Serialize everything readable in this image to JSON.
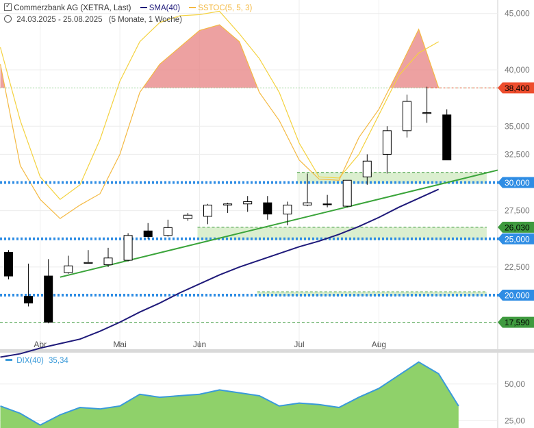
{
  "header": {
    "instrument": "Commerzbank AG (XETRA, Last)",
    "period": "24.03.2025 - 25.08.2025",
    "period_note": "(5 Monate, 1 Woche)",
    "legend": [
      {
        "label": "SMA(40)",
        "color": "#1f1a7a"
      },
      {
        "label": "SSTOC(5, 5, 3)",
        "color": "#f4b942"
      }
    ]
  },
  "colors": {
    "sma": "#1f1a7a",
    "trend": "#3aa43a",
    "stoch_fast": "#f4d23f",
    "stoch_slow": "#f4b942",
    "stoch_fill": "#e88a8a",
    "support": "#2f8de4",
    "resistance_label": "#ee4d2d",
    "level_label": "#3f9a3f",
    "dix_line": "#3a9ad9",
    "dix_fill": "#8fd16a",
    "zone": "#d5ecc7"
  },
  "chart_data": [
    {
      "type": "candlestick",
      "title": "Commerzbank AG (XETRA, Last)",
      "x_labels": [
        {
          "label": "Apr",
          "week": 2
        },
        {
          "label": "Mai",
          "week": 6
        },
        {
          "label": "Jun",
          "week": 10
        },
        {
          "label": "Jul",
          "week": 15
        },
        {
          "label": "Aug",
          "week": 19
        }
      ],
      "y_ticks": [
        "45,000",
        "40,000",
        "35,000",
        "32,500",
        "27,500",
        "22,500"
      ],
      "y_tick_values": [
        45000,
        40000,
        35000,
        32500,
        27500,
        22500
      ],
      "ylim": [
        15200,
        46200
      ],
      "candles": [
        {
          "o": 23800,
          "h": 24000,
          "l": 21400,
          "c": 21700
        },
        {
          "o": 19900,
          "h": 22800,
          "l": 19000,
          "c": 19300
        },
        {
          "o": 21700,
          "h": 23200,
          "l": 17500,
          "c": 17600
        },
        {
          "o": 22000,
          "h": 23500,
          "l": 21900,
          "c": 22600
        },
        {
          "o": 22900,
          "h": 24000,
          "l": 22850,
          "c": 22900
        },
        {
          "o": 22700,
          "h": 24200,
          "l": 22500,
          "c": 23300
        },
        {
          "o": 23100,
          "h": 25500,
          "l": 23000,
          "c": 25300
        },
        {
          "o": 25700,
          "h": 26400,
          "l": 25000,
          "c": 25200
        },
        {
          "o": 25300,
          "h": 26700,
          "l": 25200,
          "c": 26000
        },
        {
          "o": 26800,
          "h": 27300,
          "l": 26600,
          "c": 27100
        },
        {
          "o": 27000,
          "h": 28100,
          "l": 26300,
          "c": 28000
        },
        {
          "o": 28000,
          "h": 28200,
          "l": 27300,
          "c": 28100
        },
        {
          "o": 28100,
          "h": 28800,
          "l": 27400,
          "c": 28300
        },
        {
          "o": 28200,
          "h": 28800,
          "l": 26700,
          "c": 27200
        },
        {
          "o": 27200,
          "h": 28300,
          "l": 26200,
          "c": 28000
        },
        {
          "o": 28000,
          "h": 30800,
          "l": 27900,
          "c": 28200
        },
        {
          "o": 28100,
          "h": 28900,
          "l": 27800,
          "c": 28050
        },
        {
          "o": 27900,
          "h": 30200,
          "l": 27800,
          "c": 30200
        },
        {
          "o": 30500,
          "h": 32500,
          "l": 29800,
          "c": 31900
        },
        {
          "o": 32500,
          "h": 35000,
          "l": 30800,
          "c": 34600
        },
        {
          "o": 34600,
          "h": 37800,
          "l": 34000,
          "c": 37200
        },
        {
          "o": 36200,
          "h": 38500,
          "l": 35300,
          "c": 36200
        },
        {
          "o": 36000,
          "h": 36500,
          "l": 32000,
          "c": 32000
        }
      ],
      "sma40": [
        14500,
        14800,
        15300,
        15700,
        16100,
        16800,
        17600,
        18500,
        19300,
        20200,
        21000,
        21800,
        22500,
        23100,
        23700,
        24300,
        24800,
        25400,
        26100,
        26900,
        27800,
        28600,
        29400
      ],
      "sstoc_fast": [
        42000,
        35500,
        30500,
        28500,
        29800,
        33800,
        39000,
        42500,
        44200,
        44800,
        44900,
        45200,
        43200,
        41000,
        38000,
        33500,
        30500,
        30400,
        32500,
        36000,
        39500,
        41500,
        42500
      ],
      "sstoc_slow": [
        40500,
        31500,
        28500,
        26800,
        28000,
        29000,
        32500,
        38000,
        40500,
        42000,
        43500,
        44000,
        42500,
        38000,
        35500,
        32000,
        30300,
        30200,
        34000,
        36500,
        40000,
        43600,
        38400
      ],
      "sstoc_overbought": 38400,
      "support_lines": [
        30000,
        25000,
        20000
      ],
      "level_labels": [
        {
          "value": 38400,
          "label": "38,400",
          "kind": "resistance"
        },
        {
          "value": 30000,
          "label": "30,000",
          "kind": "support"
        },
        {
          "value": 26030,
          "label": "26,030",
          "kind": "level"
        },
        {
          "value": 25000,
          "label": "25,000",
          "kind": "support"
        },
        {
          "value": 20000,
          "label": "20,000",
          "kind": "support"
        },
        {
          "value": 17590,
          "label": "17,590",
          "kind": "level"
        }
      ],
      "zones": [
        {
          "from_week": 15,
          "to_week": 24,
          "low": 29900,
          "high": 30900
        },
        {
          "from_week": 10,
          "to_week": 24,
          "low": 24900,
          "high": 26030
        },
        {
          "from_week": 13,
          "to_week": 24,
          "low": 19950,
          "high": 20300
        }
      ],
      "trend_line": [
        {
          "week": 3,
          "value": 21600
        },
        {
          "week": 24,
          "value": 31100
        }
      ]
    },
    {
      "type": "area",
      "title": "DIX(40)",
      "current_value": "35,34",
      "y_ticks": [
        "50,00",
        "25,00"
      ],
      "y_tick_values": [
        50,
        25
      ],
      "ylim": [
        20,
        70
      ],
      "values": [
        35,
        30,
        22,
        29,
        34,
        33,
        35,
        43,
        41,
        42,
        43,
        46,
        44,
        42,
        35,
        37,
        36,
        34,
        41,
        47,
        56,
        65,
        57,
        35
      ]
    }
  ]
}
